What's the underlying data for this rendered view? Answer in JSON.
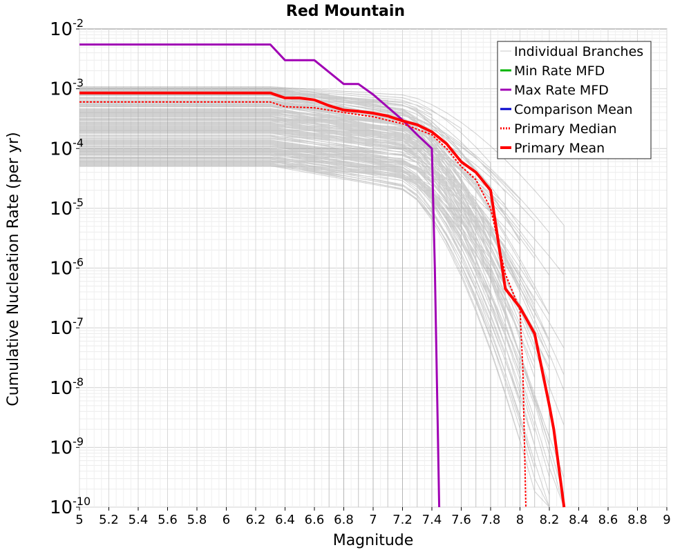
{
  "chart_data": {
    "type": "line",
    "title": "Red Mountain",
    "xlabel": "Magnitude",
    "ylabel": "Cumulative Nucleation Rate (per yr)",
    "xlim": [
      5,
      9
    ],
    "ylim": [
      1e-10,
      0.01
    ],
    "yscale": "log",
    "grid": true,
    "legend_position": "top-right",
    "x_ticks": [
      "5",
      "5.2",
      "5.4",
      "5.6",
      "5.8",
      "6",
      "6.2",
      "6.4",
      "6.6",
      "6.8",
      "7",
      "7.2",
      "7.4",
      "7.6",
      "7.8",
      "8",
      "8.2",
      "8.4",
      "8.6",
      "8.8",
      "9"
    ],
    "y_tick_exponents": [
      "-10",
      "-9",
      "-8",
      "-7",
      "-6",
      "-5",
      "-4",
      "-3",
      "-2"
    ],
    "y_tick_base": "10",
    "legend": [
      {
        "label": "Individual Branches",
        "color": "#c8c8c8",
        "style": "thin"
      },
      {
        "label": "Min Rate MFD",
        "color": "#00b400",
        "style": "solid"
      },
      {
        "label": "Max Rate MFD",
        "color": "#a000b4",
        "style": "solid"
      },
      {
        "label": "Comparison Mean",
        "color": "#0000cc",
        "style": "solid"
      },
      {
        "label": "Primary Median",
        "color": "#ff0000",
        "style": "dotted"
      },
      {
        "label": "Primary Mean",
        "color": "#ff0000",
        "style": "thick"
      }
    ],
    "series": [
      {
        "name": "Max Rate MFD",
        "color": "#a000b4",
        "x": [
          5.0,
          6.3,
          6.4,
          6.6,
          6.8,
          6.9,
          7.0,
          7.2,
          7.3,
          7.4,
          7.42,
          7.45
        ],
        "y": [
          0.0055,
          0.0055,
          0.003,
          0.003,
          0.0012,
          0.0012,
          0.0008,
          0.0003,
          0.00017,
          0.0001,
          1e-06,
          1e-10
        ]
      },
      {
        "name": "Primary Mean",
        "color": "#ff0000",
        "x": [
          5.0,
          6.3,
          6.4,
          6.5,
          6.6,
          6.7,
          6.8,
          6.9,
          7.0,
          7.1,
          7.2,
          7.3,
          7.4,
          7.5,
          7.6,
          7.7,
          7.8,
          7.9,
          8.0,
          8.1,
          8.2,
          8.23,
          8.3
        ],
        "y": [
          0.00085,
          0.00085,
          0.0007,
          0.0007,
          0.00065,
          0.00052,
          0.00044,
          0.00042,
          0.00039,
          0.00035,
          0.00029,
          0.00025,
          0.00019,
          0.00012,
          6e-05,
          4e-05,
          2e-05,
          4.5e-07,
          2.2e-07,
          8e-08,
          5e-09,
          2e-09,
          1e-10
        ]
      },
      {
        "name": "Primary Median",
        "color": "#ff0000",
        "x": [
          5.0,
          6.3,
          6.4,
          6.6,
          6.8,
          7.0,
          7.2,
          7.4,
          7.5,
          7.6,
          7.7,
          7.8,
          7.9,
          8.0,
          8.02,
          8.04
        ],
        "y": [
          0.0006,
          0.0006,
          0.0005,
          0.00048,
          0.0004,
          0.00034,
          0.00026,
          0.00017,
          0.0001,
          5e-05,
          3e-05,
          1e-05,
          8e-07,
          2e-07,
          2e-08,
          1e-10
        ]
      }
    ]
  }
}
